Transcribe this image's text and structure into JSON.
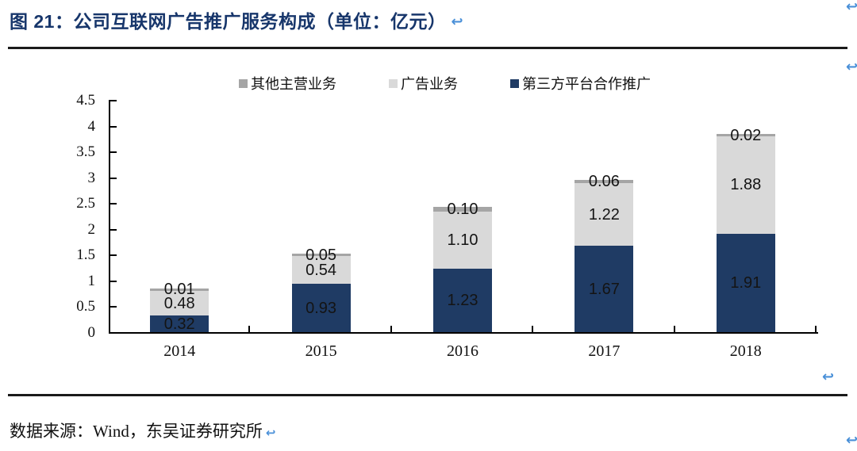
{
  "title": {
    "label": "图 21：公司互联网广告推广服务构成（单位：亿元）"
  },
  "source": {
    "label": "数据来源：Wind，东吴证券研究所"
  },
  "icons": {
    "return_icon": "↩"
  },
  "colors": {
    "title_blue": "#17366B",
    "arrow_blue": "#4A90D8",
    "navy": "#1F3B64",
    "light_gray": "#D9D9D9",
    "mid_gray": "#A5A5A5",
    "rule_black": "#1A1A1A"
  },
  "chart_data": {
    "type": "bar",
    "stacked": true,
    "title": "公司互联网广告推广服务构成（单位：亿元）",
    "categories": [
      "2014",
      "2015",
      "2016",
      "2017",
      "2018"
    ],
    "series": [
      {
        "name": "第三方平台合作推广",
        "color": "#1F3B64",
        "values": [
          0.32,
          0.93,
          1.23,
          1.67,
          1.91
        ]
      },
      {
        "name": "广告业务",
        "color": "#D9D9D9",
        "values": [
          0.48,
          0.54,
          1.1,
          1.22,
          1.88
        ]
      },
      {
        "name": "其他主营业务",
        "color": "#A5A5A5",
        "values": [
          0.01,
          0.05,
          0.1,
          0.06,
          0.02
        ]
      }
    ],
    "legend": [
      "其他主营业务",
      "广告业务",
      "第三方平台合作推广"
    ],
    "legend_position": "top",
    "xlabel": "",
    "ylabel": "",
    "ylim": [
      0,
      4.5
    ],
    "ytick_step": 0.5,
    "grid": false,
    "value_labels": true
  }
}
